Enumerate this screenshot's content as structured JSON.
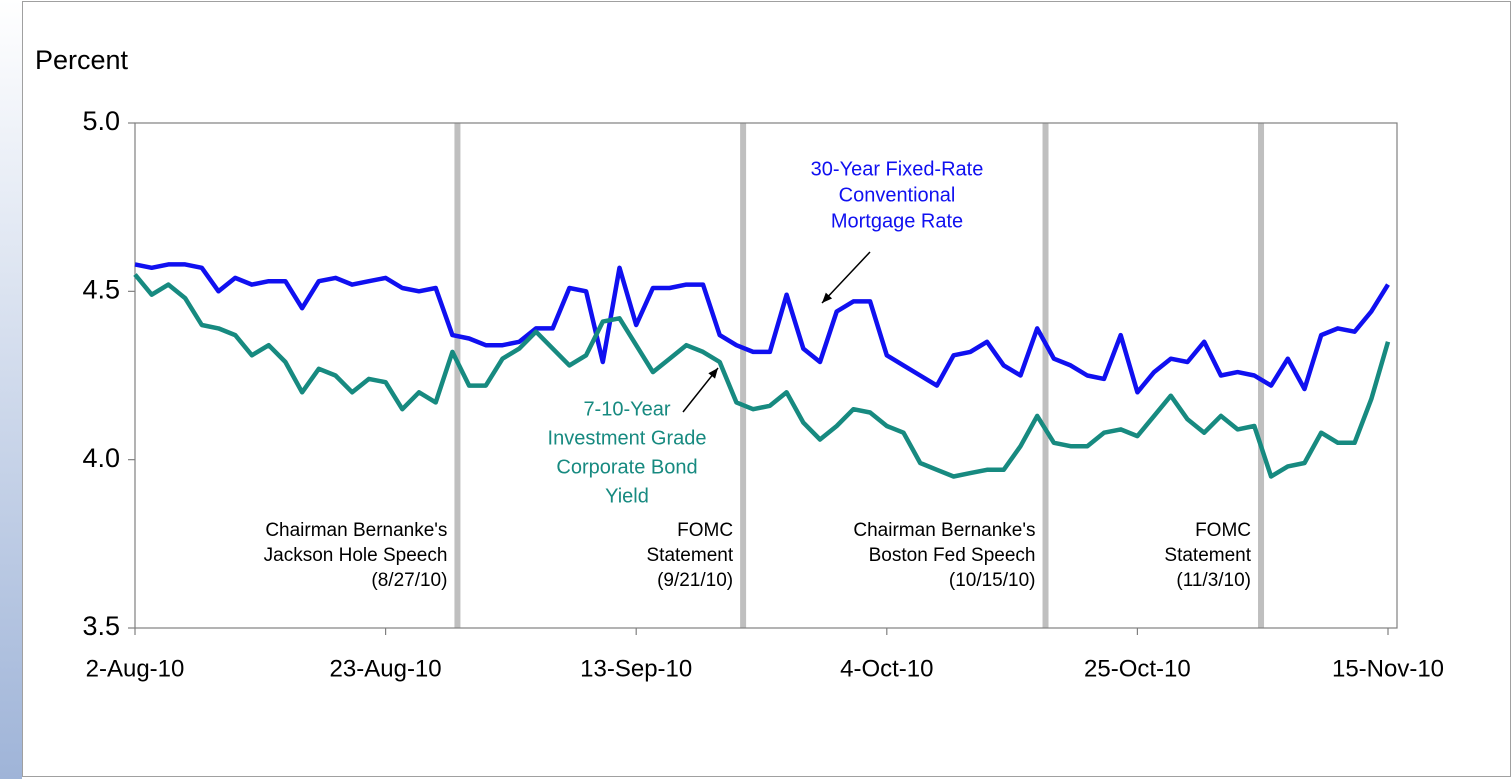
{
  "chart_data": {
    "type": "line",
    "y_axis_label": "Percent",
    "categories": [
      "2-Aug-10",
      null,
      null,
      null,
      null,
      null,
      null,
      null,
      null,
      null,
      null,
      null,
      null,
      null,
      null,
      "23-Aug-10",
      null,
      null,
      null,
      null,
      null,
      null,
      null,
      null,
      null,
      null,
      null,
      null,
      null,
      null,
      "13-Sep-10",
      null,
      null,
      null,
      null,
      null,
      null,
      null,
      null,
      null,
      null,
      null,
      null,
      null,
      null,
      "4-Oct-10",
      null,
      null,
      null,
      null,
      null,
      null,
      null,
      null,
      null,
      null,
      null,
      null,
      null,
      null,
      "25-Oct-10",
      null,
      null,
      null,
      null,
      null,
      null,
      null,
      null,
      null,
      null,
      null,
      null,
      null,
      null,
      "15-Nov-10"
    ],
    "series": [
      {
        "name": [
          "30-Year Fixed-Rate",
          "Conventional",
          "Mortgage Rate"
        ],
        "color": "#1010f0",
        "values": [
          4.58,
          4.57,
          4.58,
          4.58,
          4.57,
          4.5,
          4.54,
          4.52,
          4.53,
          4.53,
          4.45,
          4.53,
          4.54,
          4.52,
          4.53,
          4.54,
          4.51,
          4.5,
          4.51,
          4.37,
          4.36,
          4.34,
          4.34,
          4.35,
          4.39,
          4.39,
          4.51,
          4.5,
          4.29,
          4.57,
          4.4,
          4.51,
          4.51,
          4.52,
          4.52,
          4.37,
          4.34,
          4.32,
          4.32,
          4.49,
          4.33,
          4.29,
          4.44,
          4.47,
          4.47,
          4.31,
          4.28,
          4.25,
          4.22,
          4.31,
          4.32,
          4.35,
          4.28,
          4.25,
          4.39,
          4.3,
          4.28,
          4.25,
          4.24,
          4.37,
          4.2,
          4.26,
          4.3,
          4.29,
          4.35,
          4.25,
          4.26,
          4.25,
          4.22,
          4.3,
          4.21,
          4.37,
          4.39,
          4.38,
          4.44,
          4.52
        ]
      },
      {
        "name": [
          "7-10-Year",
          "Investment Grade",
          "Corporate Bond",
          "Yield"
        ],
        "color": "#178a80",
        "values": [
          4.55,
          4.49,
          4.52,
          4.48,
          4.4,
          4.39,
          4.37,
          4.31,
          4.34,
          4.29,
          4.2,
          4.27,
          4.25,
          4.2,
          4.24,
          4.23,
          4.15,
          4.2,
          4.17,
          4.32,
          4.22,
          4.22,
          4.3,
          4.33,
          4.38,
          4.33,
          4.28,
          4.31,
          4.41,
          4.42,
          4.34,
          4.26,
          4.3,
          4.34,
          4.32,
          4.29,
          4.17,
          4.15,
          4.16,
          4.2,
          4.11,
          4.06,
          4.1,
          4.15,
          4.14,
          4.1,
          4.08,
          3.99,
          3.97,
          3.95,
          3.96,
          3.97,
          3.97,
          4.04,
          4.13,
          4.05,
          4.04,
          4.04,
          4.08,
          4.09,
          4.07,
          4.13,
          4.19,
          4.12,
          4.08,
          4.13,
          4.09,
          4.1,
          3.95,
          3.98,
          3.99,
          4.08,
          4.05,
          4.05,
          4.18,
          4.35
        ]
      }
    ],
    "events": [
      {
        "at": 19.3,
        "lines": [
          "Chairman Bernanke's",
          "Jackson Hole Speech",
          "(8/27/10)"
        ]
      },
      {
        "at": 36.4,
        "lines": [
          "FOMC",
          "Statement",
          "(9/21/10)"
        ]
      },
      {
        "at": 54.5,
        "lines": [
          "Chairman Bernanke's",
          "Boston Fed Speech",
          "(10/15/10)"
        ]
      },
      {
        "at": 67.4,
        "lines": [
          "FOMC",
          "Statement",
          "(11/3/10)"
        ]
      }
    ],
    "ylim": [
      3.5,
      5.0
    ],
    "yticks": [
      {
        "value": 3.5,
        "label": "3.5"
      },
      {
        "value": 4.0,
        "label": "4.0"
      },
      {
        "value": 4.5,
        "label": "4.5"
      },
      {
        "value": 5.0,
        "label": "5.0"
      }
    ]
  }
}
